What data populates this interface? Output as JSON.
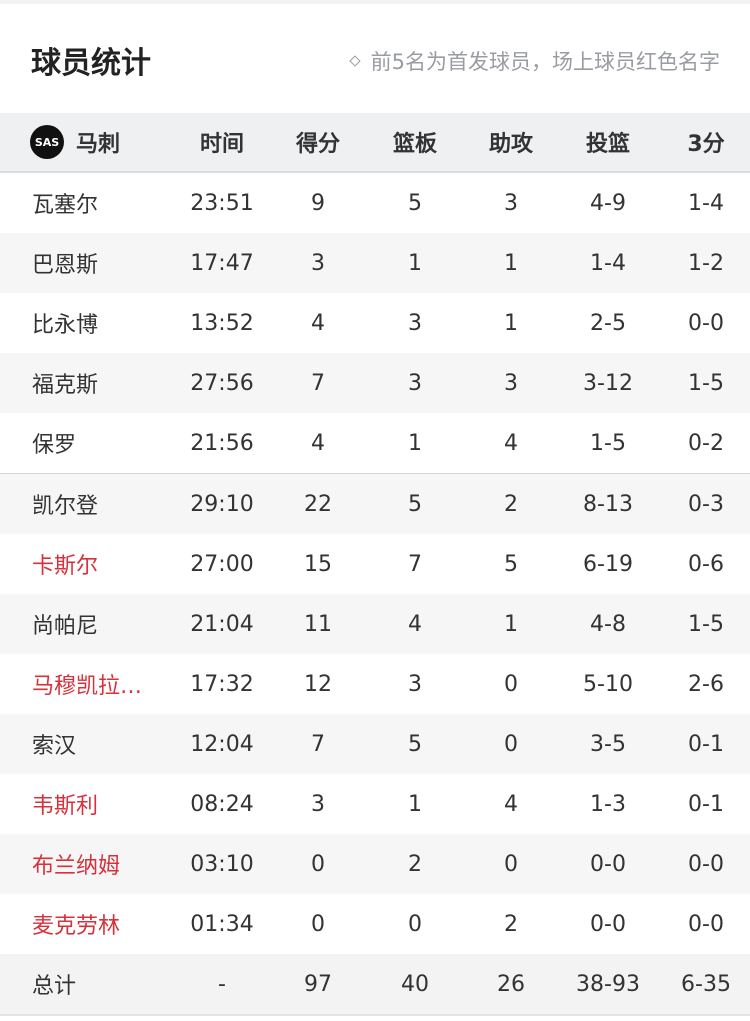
{
  "header": {
    "title": "球员统计",
    "note": "前5名为首发球员，场上球员红色名字"
  },
  "team": {
    "name": "马刺",
    "logo_text": "SAS"
  },
  "columns": [
    "时间",
    "得分",
    "篮板",
    "助攻",
    "投篮",
    "3分"
  ],
  "colors": {
    "on_court": "#d6323c"
  },
  "players": [
    {
      "name": "瓦塞尔",
      "min": "23:51",
      "pts": "9",
      "reb": "5",
      "ast": "3",
      "fg": "4-9",
      "tp": "1-4",
      "on_court": false
    },
    {
      "name": "巴恩斯",
      "min": "17:47",
      "pts": "3",
      "reb": "1",
      "ast": "1",
      "fg": "1-4",
      "tp": "1-2",
      "on_court": false
    },
    {
      "name": "比永博",
      "min": "13:52",
      "pts": "4",
      "reb": "3",
      "ast": "1",
      "fg": "2-5",
      "tp": "0-0",
      "on_court": false
    },
    {
      "name": "福克斯",
      "min": "27:56",
      "pts": "7",
      "reb": "3",
      "ast": "3",
      "fg": "3-12",
      "tp": "1-5",
      "on_court": false
    },
    {
      "name": "保罗",
      "min": "21:56",
      "pts": "4",
      "reb": "1",
      "ast": "4",
      "fg": "1-5",
      "tp": "0-2",
      "on_court": false
    },
    {
      "name": "凯尔登",
      "min": "29:10",
      "pts": "22",
      "reb": "5",
      "ast": "2",
      "fg": "8-13",
      "tp": "0-3",
      "on_court": false
    },
    {
      "name": "卡斯尔",
      "min": "27:00",
      "pts": "15",
      "reb": "7",
      "ast": "5",
      "fg": "6-19",
      "tp": "0-6",
      "on_court": true
    },
    {
      "name": "尚帕尼",
      "min": "21:04",
      "pts": "11",
      "reb": "4",
      "ast": "1",
      "fg": "4-8",
      "tp": "1-5",
      "on_court": false
    },
    {
      "name": "马穆凯拉…",
      "min": "17:32",
      "pts": "12",
      "reb": "3",
      "ast": "0",
      "fg": "5-10",
      "tp": "2-6",
      "on_court": true
    },
    {
      "name": "索汉",
      "min": "12:04",
      "pts": "7",
      "reb": "5",
      "ast": "0",
      "fg": "3-5",
      "tp": "0-1",
      "on_court": false
    },
    {
      "name": "韦斯利",
      "min": "08:24",
      "pts": "3",
      "reb": "1",
      "ast": "4",
      "fg": "1-3",
      "tp": "0-1",
      "on_court": true
    },
    {
      "name": "布兰纳姆",
      "min": "03:10",
      "pts": "0",
      "reb": "2",
      "ast": "0",
      "fg": "0-0",
      "tp": "0-0",
      "on_court": true
    },
    {
      "name": "麦克劳林",
      "min": "01:34",
      "pts": "0",
      "reb": "0",
      "ast": "2",
      "fg": "0-0",
      "tp": "0-0",
      "on_court": true
    }
  ],
  "total": {
    "label": "总计",
    "min": "-",
    "pts": "97",
    "reb": "40",
    "ast": "26",
    "fg": "38-93",
    "tp": "6-35"
  }
}
